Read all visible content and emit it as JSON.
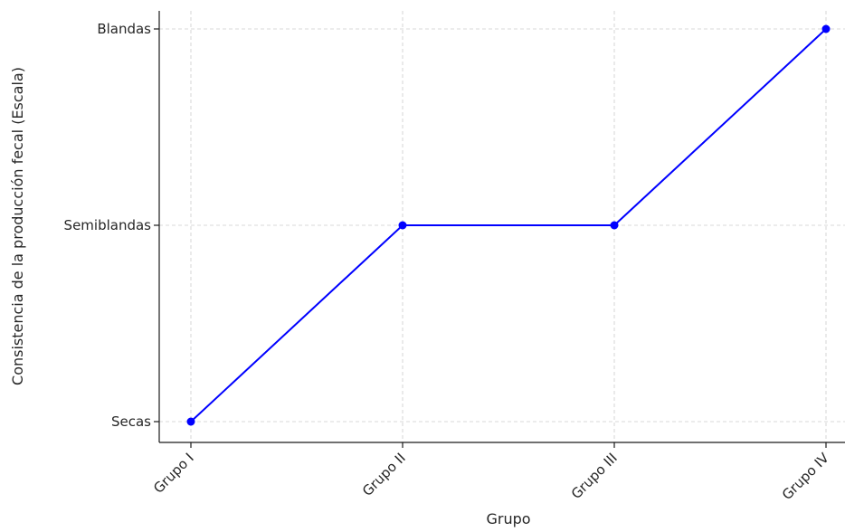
{
  "chart_data": {
    "type": "line",
    "title": "",
    "xlabel": "Grupo",
    "ylabel": "Consistencia de la producción fecal (Escala)",
    "categories": [
      "Grupo I",
      "Grupo II",
      "Grupo III",
      "Grupo IV"
    ],
    "y_levels": [
      "Secas",
      "Semiblandas",
      "Blandas"
    ],
    "series": [
      {
        "values": [
          "Secas",
          "Semiblandas",
          "Semiblandas",
          "Blandas"
        ],
        "color": "#0000ff",
        "marker": "circle"
      }
    ],
    "grid": true,
    "legend": "none"
  }
}
